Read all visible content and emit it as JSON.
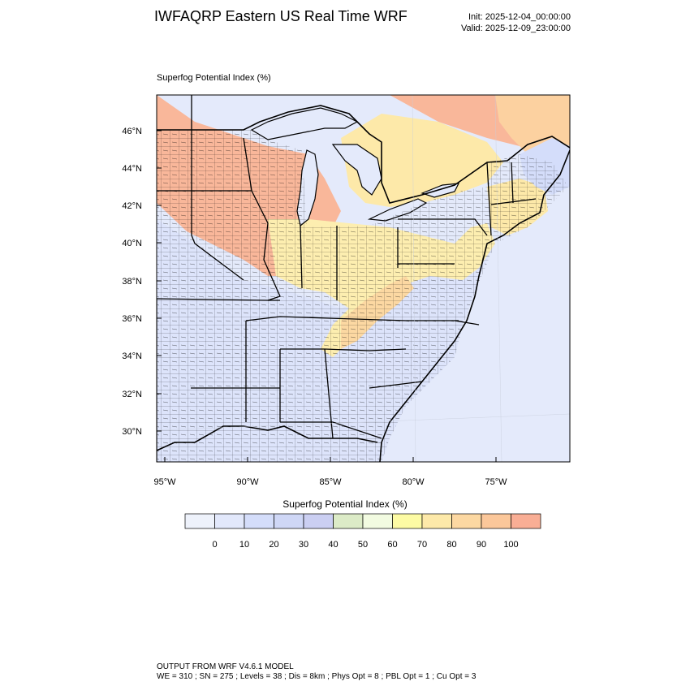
{
  "title": "IWFAQRP Eastern US Real Time WRF",
  "init": "Init: 2025-12-04_00:00:00",
  "valid": "Valid: 2025-12-09_23:00:00",
  "plot_label": "Superfog Potential Index   (%)",
  "colorbar": {
    "title": "Superfog Potential Index  (%)",
    "ticks": [
      "0",
      "10",
      "20",
      "30",
      "40",
      "50",
      "60",
      "70",
      "80",
      "90",
      "100"
    ],
    "colors": [
      "#eef2fb",
      "#e2e8fb",
      "#d4ddfa",
      "#cfd7f6",
      "#cbcff2",
      "#dcebc7",
      "#f2fbe1",
      "#fdfba4",
      "#fde9a9",
      "#fcd8a2",
      "#fbc79a",
      "#f9ae95"
    ]
  },
  "lat_labels": [
    "46°N",
    "44°N",
    "42°N",
    "40°N",
    "38°N",
    "36°N",
    "34°N",
    "32°N",
    "30°N"
  ],
  "lon_labels": [
    "95°W",
    "90°W",
    "85°W",
    "80°W",
    "75°W"
  ],
  "footer": {
    "line1": "OUTPUT FROM WRF V4.6.1 MODEL",
    "line2": "WE = 310 ; SN = 275 ; Levels = 38 ; Dis = 8km ; Phys Opt = 8 ; PBL Opt = 1 ; Cu Opt = 3"
  }
}
